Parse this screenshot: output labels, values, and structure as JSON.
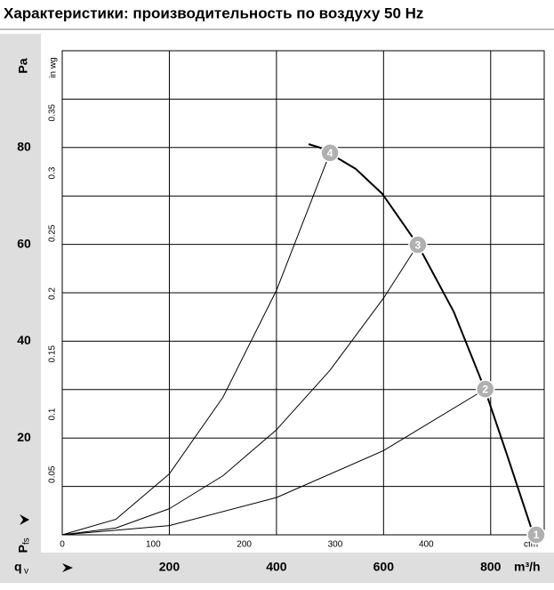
{
  "chart_data": {
    "type": "line",
    "title": "Характеристики: производительность по воздуху 50 Hz",
    "y_unit": "Pa",
    "y2_unit": "in wg",
    "x_unit": "m³/h",
    "x2_unit": "cfm",
    "y_label": "P",
    "y_label_sub": "fs",
    "x_label": "q",
    "x_label_sub": "v",
    "xlim": [
      0,
      900
    ],
    "xticks": [
      200,
      400,
      600,
      800
    ],
    "ylim": [
      0,
      100
    ],
    "yticks": [
      20,
      40,
      60,
      80
    ],
    "ygrid": [
      10,
      20,
      30,
      40,
      50,
      60,
      70,
      80,
      90,
      100
    ],
    "x2lim": [
      0,
      529.7
    ],
    "x2ticks": [
      0,
      100,
      200,
      300,
      400
    ],
    "y2lim": [
      0,
      0.4015
    ],
    "y2ticks": [
      0.05,
      0.1,
      0.15,
      0.2,
      0.25,
      0.3,
      0.35
    ],
    "grid": true,
    "series": [
      {
        "color": "#000000",
        "width": 2,
        "x": [
          460,
          481,
          548,
          598,
          664,
          731,
          789,
          830,
          880
        ],
        "values": [
          80.7,
          80,
          75.6,
          70.4,
          59.9,
          46.1,
          30.1,
          16.7,
          0
        ]
      },
      {
        "color": "#000000",
        "width": 1,
        "x": [
          0,
          100,
          200,
          300,
          400,
          500
        ],
        "values": [
          0,
          3.2,
          12.6,
          28.4,
          50.5,
          78.9
        ]
      },
      {
        "color": "#000000",
        "width": 1,
        "x": [
          0,
          100,
          200,
          300,
          400,
          500,
          600,
          664
        ],
        "values": [
          0,
          1.4,
          5.4,
          12.2,
          21.7,
          34.0,
          48.9,
          59.9
        ]
      },
      {
        "color": "#000000",
        "width": 1,
        "x": [
          0,
          200,
          400,
          600,
          790
        ],
        "values": [
          0,
          1.9,
          7.7,
          17.4,
          30.1
        ]
      }
    ],
    "operating_points": [
      {
        "label": "1",
        "x": 885,
        "y": 0
      },
      {
        "label": "2",
        "x": 790,
        "y": 30.1
      },
      {
        "label": "3",
        "x": 664,
        "y": 59.9
      },
      {
        "label": "4",
        "x": 500,
        "y": 78.9
      }
    ]
  }
}
